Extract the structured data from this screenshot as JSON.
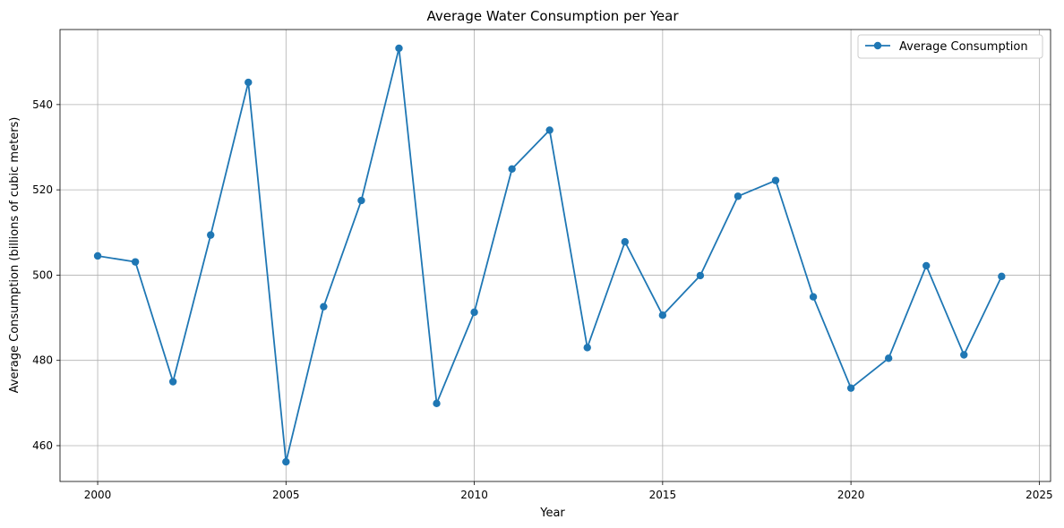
{
  "chart_data": {
    "type": "line",
    "title": "Average Water Consumption per Year",
    "xlabel": "Year",
    "ylabel": "Average Consumption (billions of cubic meters)",
    "xlim": [
      1999,
      2025.3
    ],
    "ylim": [
      451.6,
      557.6
    ],
    "xticks": [
      2000,
      2005,
      2010,
      2015,
      2020,
      2025
    ],
    "yticks": [
      460,
      480,
      500,
      520,
      540
    ],
    "grid": true,
    "legend_position": "top-right",
    "series": [
      {
        "name": "Average Consumption",
        "color": "#1f77b4",
        "marker": "circle",
        "x": [
          2000,
          2001,
          2002,
          2003,
          2004,
          2005,
          2006,
          2007,
          2008,
          2009,
          2010,
          2011,
          2012,
          2013,
          2014,
          2015,
          2016,
          2017,
          2018,
          2019,
          2020,
          2021,
          2022,
          2023,
          2024
        ],
        "y": [
          504.5,
          503.1,
          475.0,
          509.4,
          545.2,
          456.2,
          492.6,
          517.5,
          553.2,
          469.9,
          491.3,
          524.9,
          534.0,
          483.0,
          507.8,
          490.6,
          499.9,
          518.5,
          522.2,
          494.9,
          473.5,
          480.5,
          502.2,
          481.3,
          499.7
        ]
      }
    ]
  }
}
